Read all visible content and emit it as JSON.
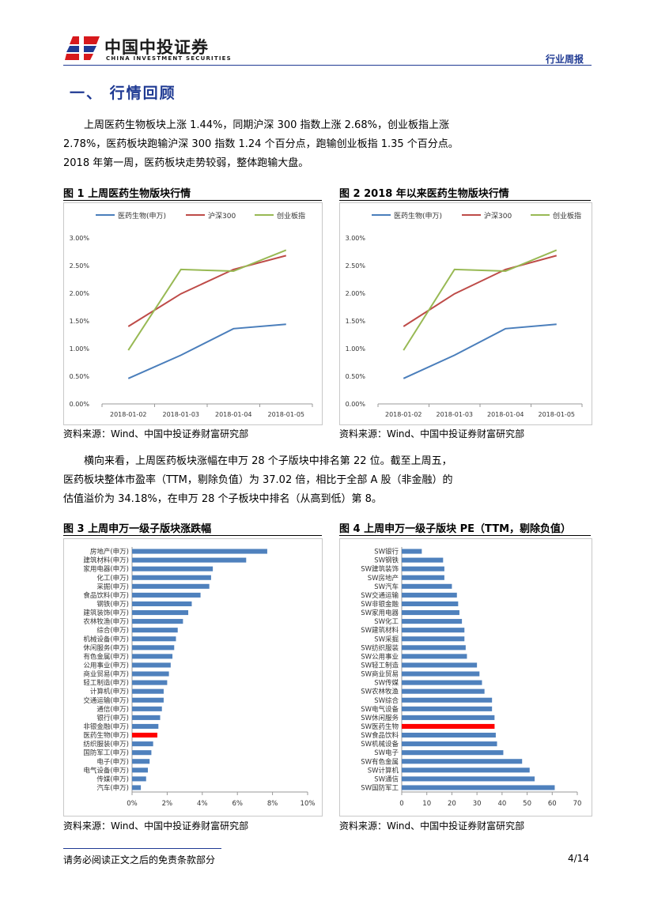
{
  "header": {
    "logo_cn": "中国中投证券",
    "logo_en": "CHINA INVESTMENT SECURITIES",
    "report_type": "行业周报",
    "logo_colors": {
      "red": "#d7191c",
      "blue": "#1f3a93"
    }
  },
  "section_title": "一、 行情回顾",
  "paragraph1": {
    "line1": "上周医药生物板块上涨 1.44%，同期沪深 300 指数上涨 2.68%，创业板指上涨",
    "line2": "2.78%，医药板块跑输沪深 300 指数 1.24 个百分点，跑输创业板指 1.35 个百分点。",
    "line3": "2018 年第一周，医药板块走势较弱，整体跑输大盘。"
  },
  "paragraph2": {
    "line1": "横向来看，上周医药板块涨幅在申万 28 个子版块中排名第 22 位。截至上周五，",
    "line2": "医药板块整体市盈率（TTM，剔除负值）为 37.02 倍，相比于全部 A 股（非金融）的",
    "line3": "估值溢价为 34.18%，在申万 28 个子板块中排名（从高到低）第 8。"
  },
  "fig1": {
    "title": "图 1 上周医药生物版块行情",
    "source": "资料来源：Wind、中国中投证券财富研究部"
  },
  "fig2": {
    "title": "图 2 2018 年以来医药生物版块行情",
    "source": "资料来源：Wind、中国中投证券财富研究部"
  },
  "fig3": {
    "title": "图 3 上周申万一级子版块涨跌幅",
    "source": "资料来源：Wind、中国中投证券财富研究部"
  },
  "fig4": {
    "title": "图 4 上周申万一级子版块 PE（TTM，剔除负值）",
    "source": "资料来源：Wind、中国中投证券财富研究部"
  },
  "chart_data": [
    {
      "id": "fig1",
      "type": "line",
      "categories": [
        "2018-01-02",
        "2018-01-03",
        "2018-01-04",
        "2018-01-05"
      ],
      "series": [
        {
          "name": "医药生物(申万)",
          "color": "#4a7ebb",
          "values": [
            0.46,
            0.88,
            1.36,
            1.44
          ]
        },
        {
          "name": "沪深300",
          "color": "#be4b48",
          "values": [
            1.4,
            1.99,
            2.43,
            2.68
          ]
        },
        {
          "name": "创业板指",
          "color": "#98b954",
          "values": [
            0.97,
            2.43,
            2.4,
            2.78
          ]
        }
      ],
      "yticks": [
        "0.00%",
        "0.50%",
        "1.00%",
        "1.50%",
        "2.00%",
        "2.50%",
        "3.00%"
      ],
      "ylim": [
        0,
        3
      ],
      "legend": "top"
    },
    {
      "id": "fig2",
      "type": "line",
      "categories": [
        "2018-01-02",
        "2018-01-03",
        "2018-01-04",
        "2018-01-05"
      ],
      "series": [
        {
          "name": "医药生物(申万)",
          "color": "#4a7ebb",
          "values": [
            0.46,
            0.88,
            1.36,
            1.44
          ]
        },
        {
          "name": "沪深300",
          "color": "#be4b48",
          "values": [
            1.4,
            1.99,
            2.43,
            2.68
          ]
        },
        {
          "name": "创业板指",
          "color": "#98b954",
          "values": [
            0.97,
            2.43,
            2.4,
            2.78
          ]
        }
      ],
      "yticks": [
        "0.00%",
        "0.50%",
        "1.00%",
        "1.50%",
        "2.00%",
        "2.50%",
        "3.00%"
      ],
      "ylim": [
        0,
        3
      ],
      "legend": "top"
    },
    {
      "id": "fig3",
      "type": "bar",
      "orientation": "horizontal",
      "bar_color": "#4f81bd",
      "highlight_color": "#ff0000",
      "highlight": "医药生物(申万)",
      "categories": [
        "房地产(申万)",
        "建筑材料(申万)",
        "家用电器(申万)",
        "化工(申万)",
        "采掘(申万)",
        "食品饮料(申万)",
        "钢铁(申万)",
        "建筑装饰(申万)",
        "农林牧渔(申万)",
        "综合(申万)",
        "机械设备(申万)",
        "休闲服务(申万)",
        "有色金属(申万)",
        "公用事业(申万)",
        "商业贸易(申万)",
        "轻工制造(申万)",
        "计算机(申万)",
        "交通运输(申万)",
        "通信(申万)",
        "银行(申万)",
        "非银金融(申万)",
        "医药生物(申万)",
        "纺织服装(申万)",
        "国防军工(申万)",
        "电子(申万)",
        "电气设备(申万)",
        "传媒(申万)",
        "汽车(申万)"
      ],
      "values": [
        7.7,
        6.5,
        4.6,
        4.5,
        4.4,
        3.9,
        3.4,
        3.2,
        2.9,
        2.6,
        2.5,
        2.4,
        2.3,
        2.2,
        2.1,
        2.0,
        1.8,
        1.8,
        1.7,
        1.6,
        1.5,
        1.44,
        1.2,
        1.1,
        1.0,
        0.9,
        0.8,
        0.5
      ],
      "xticks": [
        "0%",
        "2%",
        "4%",
        "6%",
        "8%",
        "10%"
      ],
      "xlim": [
        0,
        10
      ]
    },
    {
      "id": "fig4",
      "type": "bar",
      "orientation": "horizontal",
      "bar_color": "#4f81bd",
      "highlight_color": "#ff0000",
      "highlight": "SW医药生物",
      "categories": [
        "SW银行",
        "SW钢铁",
        "SW建筑装饰",
        "SW房地产",
        "SW汽车",
        "SW交通运输",
        "SW非银金融",
        "SW家用电器",
        "SW化工",
        "SW建筑材料",
        "SW采掘",
        "SW纺织服装",
        "SW公用事业",
        "SW轻工制造",
        "SW商业贸易",
        "SW传媒",
        "SW农林牧渔",
        "SW综合",
        "SW电气设备",
        "SW休闲服务",
        "SW医药生物",
        "SW食品饮料",
        "SW机械设备",
        "SW电子",
        "SW有色金属",
        "SW计算机",
        "SW通信",
        "SW国防军工"
      ],
      "values": [
        8,
        16.5,
        17,
        17,
        20,
        22,
        22.5,
        23,
        24,
        25,
        25,
        25.5,
        26,
        30,
        31,
        32,
        33,
        36,
        36,
        37,
        37.02,
        37.5,
        38,
        40.5,
        48,
        51,
        53,
        61
      ],
      "xticks": [
        "0",
        "10",
        "20",
        "30",
        "40",
        "50",
        "60",
        "70"
      ],
      "xlim": [
        0,
        70
      ]
    }
  ],
  "footer": {
    "disclaimer": "请务必阅读正文之后的免责条款部分",
    "page": "4/14"
  }
}
